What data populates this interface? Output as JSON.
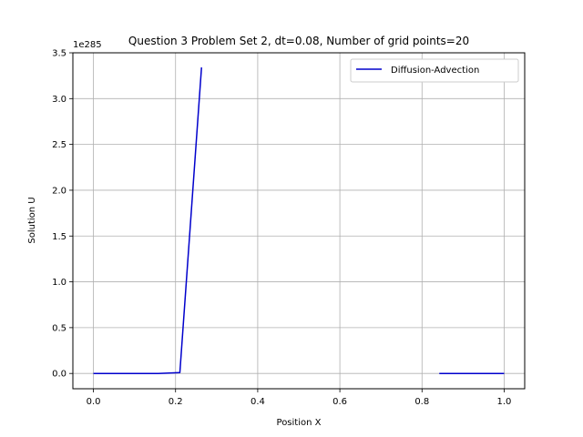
{
  "chart_data": {
    "type": "line",
    "title": "Question 3 Problem Set 2, dt=0.08, Number of grid points=20",
    "xlabel": "Position X",
    "ylabel": "Solution U",
    "y_scale_label": "1e285",
    "xlim": [
      -0.05,
      1.05
    ],
    "ylim": [
      -0.167,
      3.5
    ],
    "xticks": [
      0.0,
      0.2,
      0.4,
      0.6,
      0.8,
      1.0
    ],
    "xtick_labels": [
      "0.0",
      "0.2",
      "0.4",
      "0.6",
      "0.8",
      "1.0"
    ],
    "yticks": [
      0.0,
      0.5,
      1.0,
      1.5,
      2.0,
      2.5,
      3.0,
      3.5
    ],
    "ytick_labels": [
      "0.0",
      "0.5",
      "1.0",
      "1.5",
      "2.0",
      "2.5",
      "3.0",
      "3.5"
    ],
    "grid": true,
    "legend_position": "top-right",
    "series": [
      {
        "name": "Diffusion-Advection",
        "color": "#0000cc",
        "segments": [
          {
            "x": [
              0.0,
              0.0526,
              0.1053,
              0.1579,
              0.2105,
              0.2632
            ],
            "y": [
              0.0,
              0.0,
              0.0,
              0.0,
              0.01,
              3.34
            ]
          },
          {
            "x": [
              0.8421,
              0.8947,
              0.9474,
              1.0
            ],
            "y": [
              0.0,
              0.0,
              0.0,
              0.0
            ]
          }
        ]
      }
    ]
  }
}
